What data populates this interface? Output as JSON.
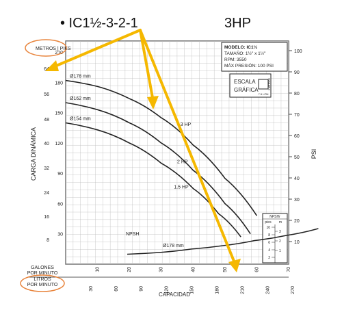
{
  "annotations": {
    "headline_model": "• IC1½-3-2-1",
    "headline_hp": "3HP"
  },
  "infobox": {
    "modelo": "MODELO: IC1½",
    "tamano": "TAMAÑO: 1½\" x 1½\"",
    "rpm": "RPM: 3550",
    "presion": "MÁX PRESIÓN: 100 PSI",
    "escala_1": "ESCALA",
    "escala_2": "GRÁFICA",
    "escala_side": "3 METROS",
    "escala_bottom": "7.5 LPM"
  },
  "nps_box": {
    "title": "NPSHr",
    "col_pies": "pies",
    "col_m": "m",
    "pies_ticks": [
      "10",
      "8",
      "6",
      "4",
      "2"
    ],
    "m_ticks": [
      "3",
      "2",
      "1"
    ]
  },
  "colors": {
    "curve": "#222222",
    "grid": "#999999",
    "arrow": "#f5b800",
    "circle": "#e8843c"
  },
  "chart_data": {
    "type": "line",
    "title": "",
    "xlabel": "CAPACIDAD",
    "ylabel": "CARGA DINÁMICA",
    "y2label": "PSI",
    "row_labels": {
      "metros_pies": "METROS | PIES",
      "galones": "GALONES POR MINUTO",
      "litros": "LITROS POR MINUTO"
    },
    "x_gpm_ticks": [
      "10",
      "20",
      "30",
      "40",
      "50",
      "60",
      "70"
    ],
    "x_lpm_ticks": [
      "30",
      "60",
      "90",
      "120",
      "150",
      "180",
      "210",
      "240",
      "270"
    ],
    "y_meters_ticks": [
      "64",
      "56",
      "48",
      "40",
      "32",
      "24",
      "16",
      "8"
    ],
    "y_feet_ticks": [
      "210",
      "180",
      "150",
      "120",
      "90",
      "60",
      "30"
    ],
    "y_psi_ticks": [
      "100",
      "90",
      "80",
      "70",
      "60",
      "50",
      "40",
      "30",
      "20",
      "10"
    ],
    "x_units": "GPM",
    "y_units": "ft",
    "xlim": [
      0,
      70
    ],
    "ylim": [
      0,
      221
    ],
    "grid": true,
    "series": [
      {
        "name": "Ø178 mm",
        "x": [
          0,
          10,
          20,
          30,
          40,
          50,
          60
        ],
        "y": [
          182,
          176,
          164,
          145,
          118,
          85,
          48
        ]
      },
      {
        "name": "Ø162 mm",
        "x": [
          0,
          10,
          20,
          30,
          40,
          50,
          58
        ],
        "y": [
          160,
          153,
          140,
          120,
          93,
          60,
          30
        ]
      },
      {
        "name": "Ø154 mm",
        "x": [
          0,
          10,
          20,
          30,
          40,
          48,
          55
        ],
        "y": [
          140,
          133,
          120,
          100,
          75,
          50,
          27
        ]
      },
      {
        "name": "NPSH Ø178 mm",
        "x": [
          0,
          10,
          20,
          30,
          40,
          50,
          60
        ],
        "y": [
          2.5,
          3,
          4,
          5,
          6.5,
          8,
          10
        ],
        "axis": "npsh_ft"
      }
    ],
    "curve_labels": [
      {
        "text": "3 HP",
        "x": 36,
        "y": 137
      },
      {
        "text": "2 HP",
        "x": 35,
        "y": 100
      },
      {
        "text": "1.5 HP",
        "x": 34,
        "y": 75
      },
      {
        "text": "NPSH",
        "x": 23,
        "y": 26
      },
      {
        "text": "Ø178 mm",
        "x": 39,
        "y": 12
      }
    ]
  }
}
